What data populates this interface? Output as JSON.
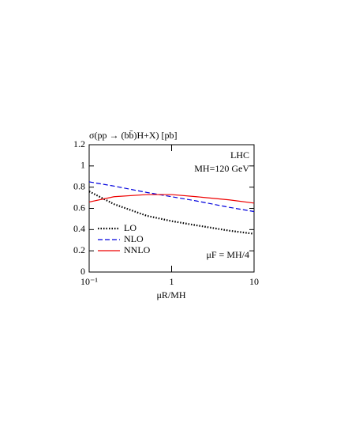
{
  "chart_data": {
    "type": "line",
    "title": "σ(pp → (bb̄)H+X) [pb]",
    "xlabel": "μR/MH",
    "annotations": [
      "LHC",
      "MH=120 GeV",
      "μF = MH/4"
    ],
    "x": [
      0.1,
      0.2,
      0.5,
      1,
      2,
      5,
      10
    ],
    "series": [
      {
        "name": "LO",
        "color": "#000000",
        "dash": "dotted",
        "values": [
          0.76,
          0.64,
          0.53,
          0.48,
          0.44,
          0.39,
          0.36
        ]
      },
      {
        "name": "NLO",
        "color": "#0000dd",
        "dash": "dashed",
        "values": [
          0.85,
          0.81,
          0.75,
          0.71,
          0.67,
          0.61,
          0.57
        ]
      },
      {
        "name": "NNLO",
        "color": "#ee0000",
        "dash": "solid",
        "values": [
          0.66,
          0.71,
          0.73,
          0.73,
          0.71,
          0.68,
          0.65
        ]
      }
    ],
    "xscale": "log",
    "xlim": [
      0.1,
      10
    ],
    "xticks": [
      {
        "value": 0.1,
        "label": "10⁻¹"
      },
      1,
      10
    ],
    "ylim": [
      0,
      1.2
    ],
    "yticks": [
      0,
      0.2,
      0.4,
      0.6,
      0.8,
      1,
      1.2
    ],
    "legend": "lower left"
  }
}
